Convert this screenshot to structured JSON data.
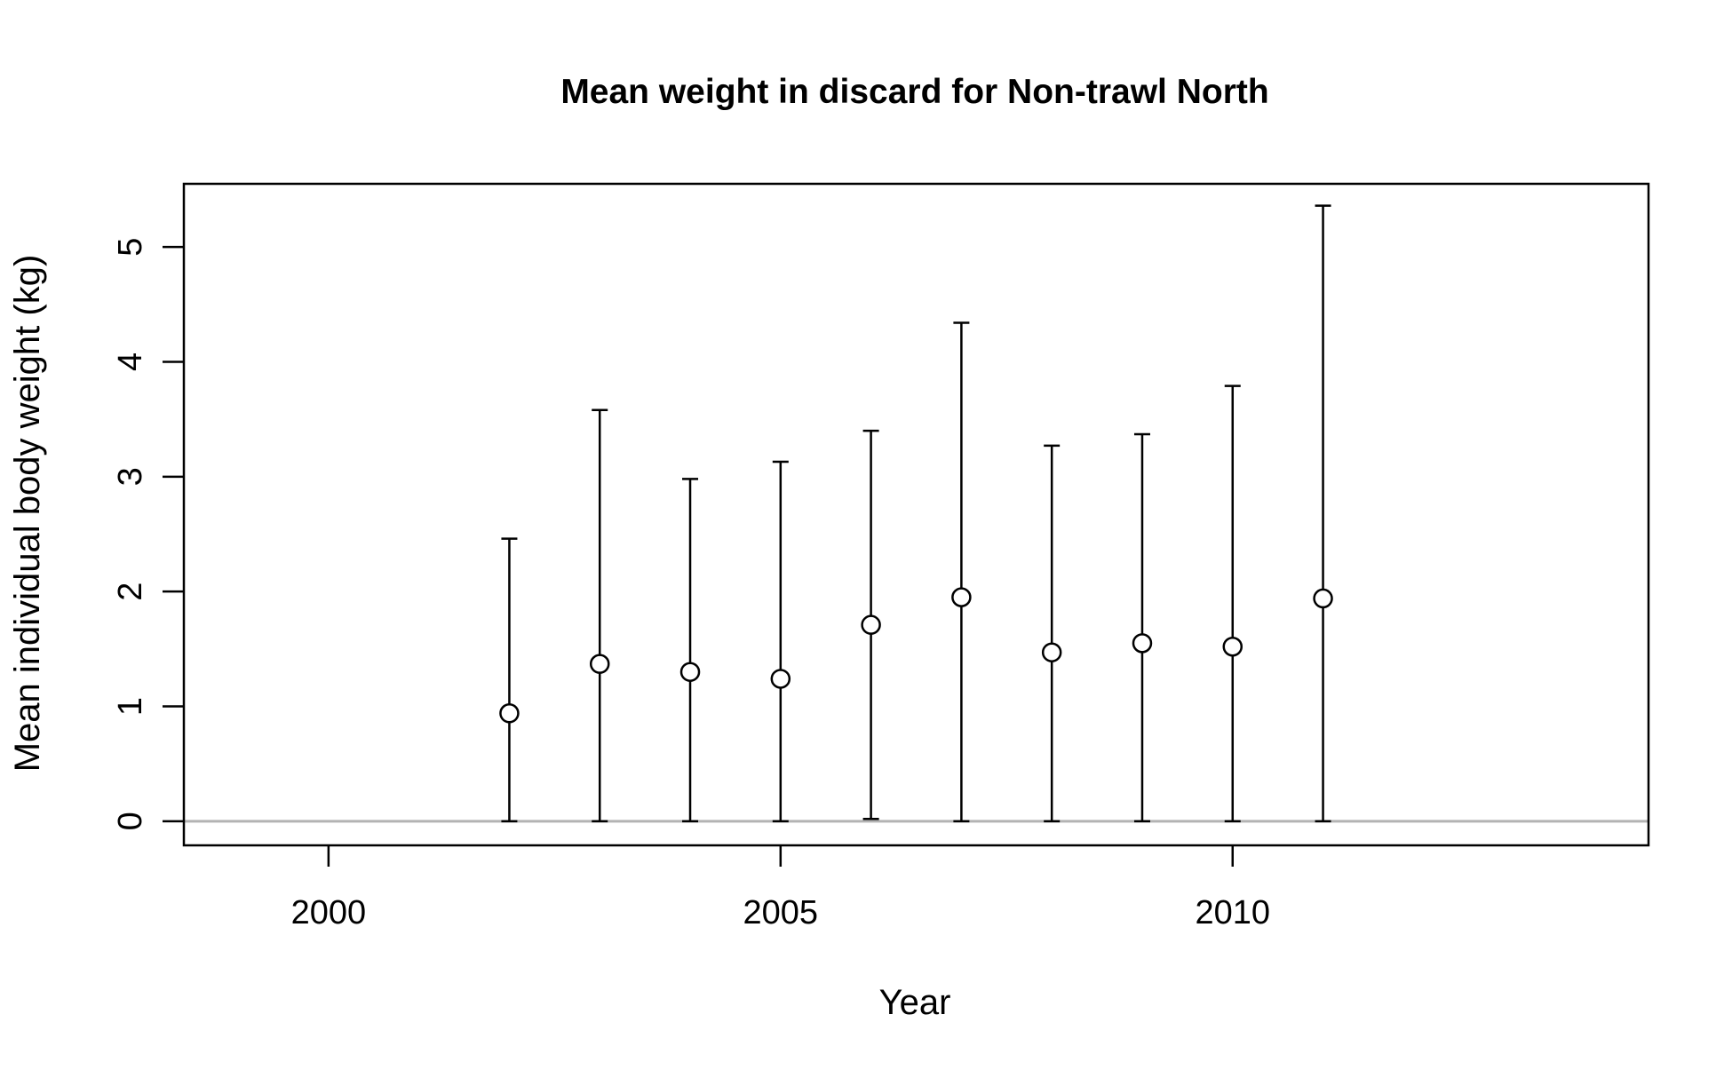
{
  "chart_data": {
    "type": "scatter",
    "title": "Mean weight in discard for Non-trawl North",
    "xlabel": "Year",
    "ylabel": "Mean individual body weight (kg)",
    "xlim": [
      1998.4,
      2014.6
    ],
    "ylim": [
      -0.21,
      5.55
    ],
    "x_ticks": [
      2000,
      2005,
      2010
    ],
    "x_tick_labels": [
      "2000",
      "2005",
      "2010"
    ],
    "y_ticks": [
      0,
      1,
      2,
      3,
      4,
      5
    ],
    "y_tick_labels": [
      "0",
      "1",
      "2",
      "3",
      "4",
      "5"
    ],
    "grid": false,
    "reference_line": {
      "y": 0,
      "color": "#b3b3b3"
    },
    "series": [
      {
        "marker": "open-circle",
        "color": "#000000",
        "points": [
          {
            "x": 2002,
            "y": 0.94,
            "lower": 0.0,
            "upper": 2.46
          },
          {
            "x": 2003,
            "y": 1.37,
            "lower": 0.0,
            "upper": 3.58
          },
          {
            "x": 2004,
            "y": 1.3,
            "lower": 0.0,
            "upper": 2.98
          },
          {
            "x": 2005,
            "y": 1.24,
            "lower": 0.0,
            "upper": 3.13
          },
          {
            "x": 2006,
            "y": 1.71,
            "lower": 0.02,
            "upper": 3.4
          },
          {
            "x": 2007,
            "y": 1.95,
            "lower": 0.0,
            "upper": 4.34
          },
          {
            "x": 2008,
            "y": 1.47,
            "lower": 0.0,
            "upper": 3.27
          },
          {
            "x": 2009,
            "y": 1.55,
            "lower": 0.0,
            "upper": 3.37
          },
          {
            "x": 2010,
            "y": 1.52,
            "lower": 0.0,
            "upper": 3.79
          },
          {
            "x": 2011,
            "y": 1.94,
            "lower": 0.0,
            "upper": 5.36
          }
        ]
      }
    ]
  }
}
